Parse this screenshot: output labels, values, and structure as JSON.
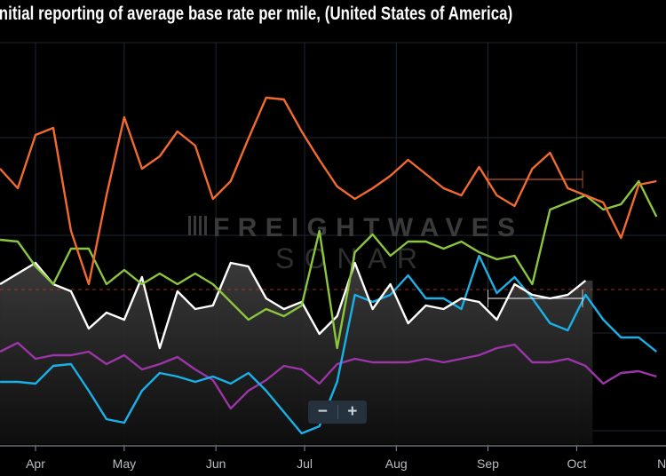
{
  "chart_data": {
    "type": "line",
    "title": "Initial reporting of average base rate per mile, (United States of America)",
    "xlabel": "",
    "ylabel": "",
    "ylim": [
      0,
      112.5
    ],
    "grid": true,
    "legend": "none",
    "x_ticks": [
      {
        "label": "Apr",
        "date": "Apr 1"
      },
      {
        "label": "May",
        "date": "May 1"
      },
      {
        "label": "Jun",
        "date": "Jun 1"
      },
      {
        "label": "Jul",
        "date": "Jul 1"
      },
      {
        "label": "Aug",
        "date": "Aug 1"
      },
      {
        "label": "Sep",
        "date": "Sep 1"
      },
      {
        "label": "Oct",
        "date": "Oct 1"
      },
      {
        "label": "Nov",
        "date": "Nov 1"
      }
    ],
    "x": [
      "Mar 20",
      "Mar 26",
      "Apr 1",
      "Apr 7",
      "Apr 13",
      "Apr 19",
      "Apr 25",
      "May 1",
      "May 7",
      "May 13",
      "May 19",
      "May 25",
      "May 31",
      "Jun 6",
      "Jun 12",
      "Jun 18",
      "Jun 24",
      "Jun 30",
      "Jul 6",
      "Jul 12",
      "Jul 18",
      "Jul 24",
      "Jul 30",
      "Aug 5",
      "Aug 11",
      "Aug 17",
      "Aug 23",
      "Aug 29",
      "Sep 4",
      "Sep 10",
      "Sep 16",
      "Sep 22",
      "Sep 28",
      "Oct 4",
      "Oct 10",
      "Oct 16",
      "Oct 22",
      "Oct 28"
    ],
    "series": [
      {
        "color": "#f26a2e",
        "values": [
          77.5,
          72,
          87,
          89,
          60,
          45,
          70,
          92,
          77.5,
          81,
          88,
          84,
          69,
          74,
          86,
          97.5,
          97,
          88,
          80,
          72.5,
          69,
          72,
          75.5,
          80,
          76,
          72,
          70,
          78,
          70,
          67,
          77.5,
          82,
          72,
          70,
          68,
          58,
          73,
          74
        ]
      },
      {
        "color": "#8cc63f",
        "values": [
          57.5,
          57,
          50,
          45,
          55,
          55,
          45,
          49,
          45,
          48,
          45,
          48,
          45,
          40,
          35,
          38,
          36,
          39,
          60,
          27,
          54,
          59,
          53,
          57,
          57,
          55,
          57,
          54,
          52,
          53,
          45,
          66,
          68,
          70,
          66,
          67.5,
          74,
          64
        ]
      },
      {
        "color": "#ffffff",
        "area": true,
        "values": [
          45,
          48,
          51,
          45,
          43,
          32.5,
          37,
          35,
          47,
          27,
          43,
          38,
          39,
          51,
          50,
          41,
          38,
          40,
          31,
          36,
          51,
          38,
          45,
          34,
          39,
          38,
          41,
          40,
          35,
          45,
          42,
          41,
          42,
          46,
          null,
          null,
          null,
          null
        ]
      },
      {
        "color": "#1ab0e8",
        "values": [
          17.5,
          17.5,
          17,
          22,
          22.5,
          15,
          7,
          6,
          15,
          20,
          19,
          17.5,
          19,
          17,
          20,
          15,
          9,
          3,
          5,
          17.5,
          42,
          40,
          42,
          47.5,
          41,
          41,
          38,
          53,
          42.5,
          47,
          41,
          34,
          32,
          42,
          35,
          30,
          30,
          26
        ]
      },
      {
        "color": "#9b35a8",
        "values": [
          26,
          28.5,
          24,
          25,
          25,
          26,
          22.5,
          25,
          21,
          22.5,
          24.5,
          21,
          18,
          10,
          15,
          18,
          22,
          21,
          17,
          22.5,
          24,
          23,
          23,
          23,
          24,
          23,
          24,
          25,
          27,
          28,
          23,
          23,
          24,
          22,
          17,
          20,
          20.5,
          19
        ]
      }
    ],
    "reference_line": {
      "value": 43.5,
      "color": "#c0392b",
      "style": "dashed"
    },
    "range_markers": [
      {
        "from": "Sep 1",
        "to": "Oct 3",
        "value": 74.5,
        "color": "#f26a2e"
      },
      {
        "from": "Sep 1",
        "to": "Oct 3",
        "value": 41,
        "color": "#ffffff"
      }
    ]
  },
  "watermark": {
    "line1": "FREIGHTWAVES",
    "line2": "SONAR"
  },
  "zoom_controls": {
    "minus": "−",
    "plus": "+"
  }
}
